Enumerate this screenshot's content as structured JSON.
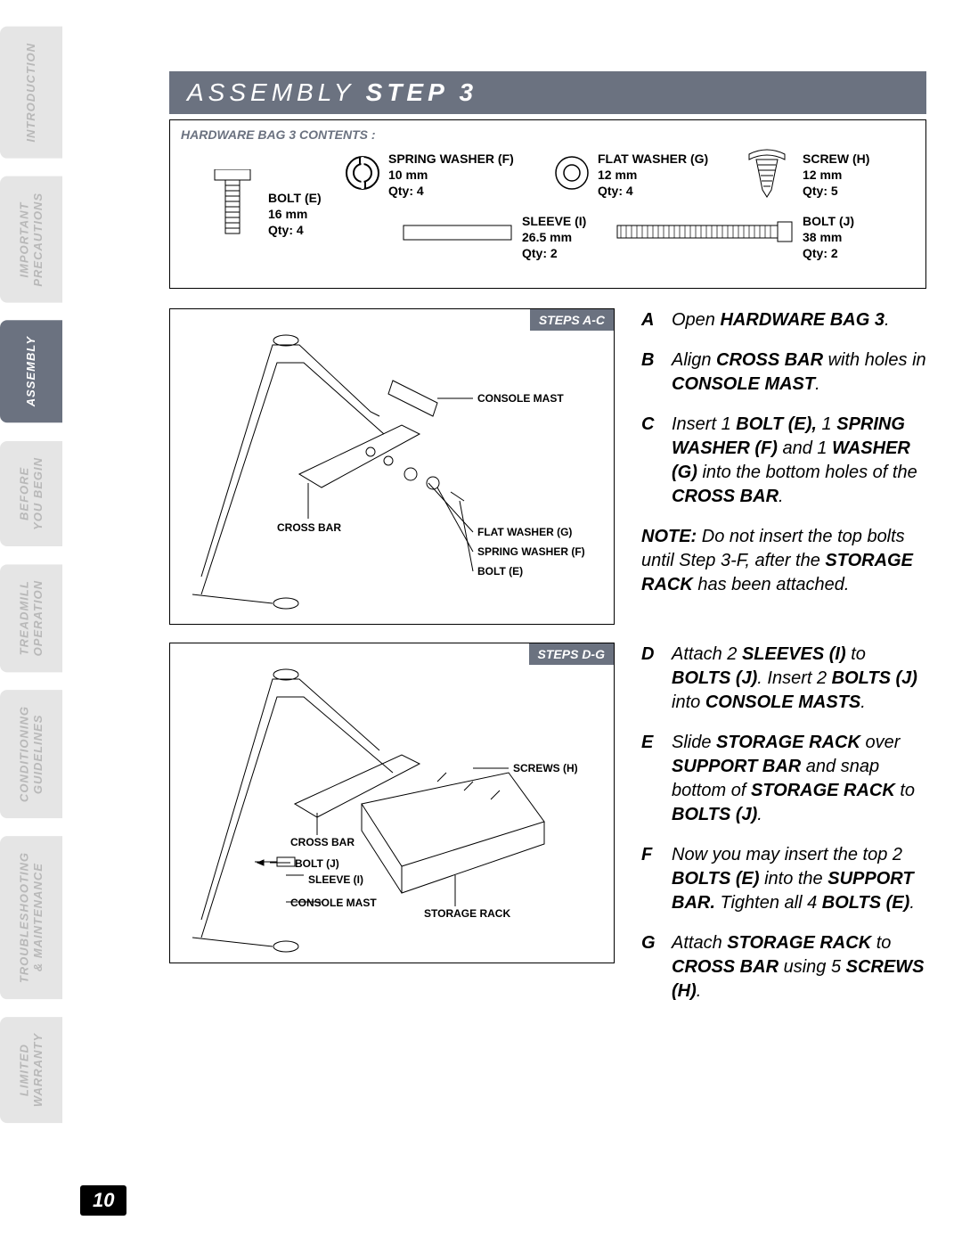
{
  "page_number": "10",
  "sidebar": {
    "tabs": [
      {
        "label": "INTRODUCTION",
        "active": false
      },
      {
        "label": "IMPORTANT\nPRECAUTIONS",
        "active": false
      },
      {
        "label": "ASSEMBLY",
        "active": true
      },
      {
        "label": "BEFORE\nYOU BEGIN",
        "active": false
      },
      {
        "label": "TREADMILL\nOPERATION",
        "active": false
      },
      {
        "label": "CONDITIONING\nGUIDELINES",
        "active": false
      },
      {
        "label": "TROUBLESHOOTING\n& MAINTENANCE",
        "active": false
      },
      {
        "label": "LIMITED\nWARRANTY",
        "active": false
      }
    ]
  },
  "title": {
    "prefix": "ASSEMBLY ",
    "bold": "STEP 3"
  },
  "hardware": {
    "header": "HARDWARE BAG 3 CONTENTS :",
    "items": {
      "bolt_e": {
        "l1": "BOLT (E)",
        "l2": "16 mm",
        "l3": "Qty: 4"
      },
      "spring_f": {
        "l1": "SPRING WASHER (F)",
        "l2": "10 mm",
        "l3": "Qty: 4"
      },
      "flat_g": {
        "l1": "FLAT WASHER (G)",
        "l2": "12 mm",
        "l3": "Qty: 4"
      },
      "screw_h": {
        "l1": "SCREW (H)",
        "l2": "12 mm",
        "l3": "Qty: 5"
      },
      "sleeve_i": {
        "l1": "SLEEVE (I)",
        "l2": "26.5 mm",
        "l3": "Qty: 2"
      },
      "bolt_j": {
        "l1": "BOLT (J)",
        "l2": "38 mm",
        "l3": "Qty: 2"
      }
    }
  },
  "diagram1": {
    "badge": "STEPS A-C",
    "callouts": {
      "console_mast": "CONSOLE MAST",
      "cross_bar": "CROSS BAR",
      "flat_washer": "FLAT WASHER (G)",
      "spring_washer": "SPRING WASHER (F)",
      "bolt_e": "BOLT (E)"
    }
  },
  "diagram2": {
    "badge": "STEPS D-G",
    "callouts": {
      "screws_h": "SCREWS (H)",
      "cross_bar": "CROSS BAR",
      "bolt_j": "BOLT (J)",
      "sleeve_i": "SLEEVE (I)",
      "console_mast": "CONSOLE MAST",
      "storage_rack": "STORAGE RACK"
    }
  },
  "instructions1": {
    "a": {
      "letter": "A",
      "pre": "Open ",
      "b1": "HARDWARE BAG 3",
      "post": "."
    },
    "b": {
      "letter": "B",
      "pre": "Align ",
      "b1": "CROSS BAR",
      "mid": " with holes in ",
      "b2": "CONSOLE MAST",
      "post": "."
    },
    "c": {
      "letter": "C",
      "pre": "Insert 1 ",
      "b1": "BOLT (E),",
      "mid1": " 1 ",
      "b2": "SPRING WASHER (F)",
      "mid2": " and 1 ",
      "b3": "WASHER (G)",
      "mid3": " into the bottom holes of the ",
      "b4": "CROSS BAR",
      "post": "."
    },
    "note": {
      "label": "NOTE:",
      "pre": " Do not insert the top bolts until Step 3-F, after the ",
      "b1": "STORAGE RACK",
      "post": " has been attached."
    }
  },
  "instructions2": {
    "d": {
      "letter": "D",
      "pre": "Attach 2 ",
      "b1": "SLEEVES (I)",
      "mid1": " to ",
      "b2": "BOLTS (J)",
      "mid2": ". Insert 2 ",
      "b3": "BOLTS (J)",
      "mid3": " into ",
      "b4": "CONSOLE MASTS",
      "post": "."
    },
    "e": {
      "letter": "E",
      "pre": "Slide ",
      "b1": "STORAGE RACK",
      "mid1": " over ",
      "b2": "SUPPORT BAR",
      "mid2": " and snap bottom of ",
      "b3": "STORAGE RACK",
      "mid3": " to ",
      "b4": "BOLTS (J)",
      "post": "."
    },
    "f": {
      "letter": "F",
      "pre": "Now you may insert the top 2 ",
      "b1": "BOLTS (E)",
      "mid1": " into the ",
      "b2": "SUPPORT BAR.",
      "mid2": " Tighten all 4 ",
      "b3": "BOLTS (E)",
      "post": "."
    },
    "g": {
      "letter": "G",
      "pre": "Attach ",
      "b1": "STORAGE RACK",
      "mid1": " to ",
      "b2": "CROSS BAR",
      "mid2": " using 5 ",
      "b3": "SCREWS (H)",
      "post": "."
    }
  },
  "colors": {
    "gray": "#6b7280",
    "tab_inactive_bg": "#e5e5e5",
    "tab_inactive_fg": "#b8b8b8"
  }
}
